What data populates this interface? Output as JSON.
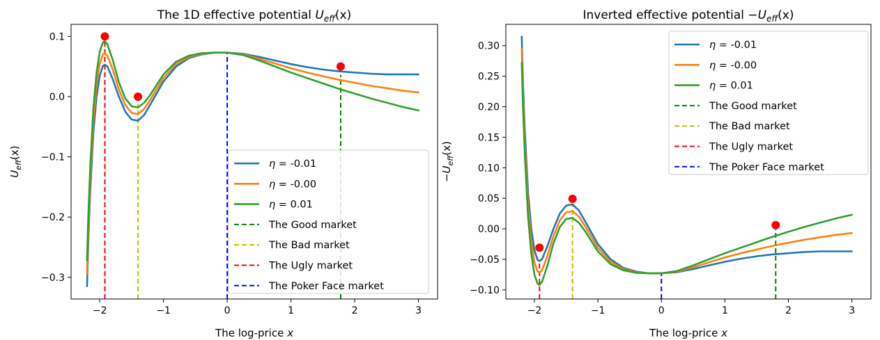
{
  "chart_data": [
    {
      "type": "line",
      "title_prefix": "The 1D effective potential ",
      "title_math": "U",
      "title_sub": "eff",
      "title_suffix": "(x)",
      "xlabel_text": "The log-price ",
      "xlabel_var": "x",
      "ylabel_math": "U",
      "ylabel_sub": "eff",
      "ylabel_suffix": "(x)",
      "ylabel_prefix": "",
      "xlim": [
        -2.45,
        3.3
      ],
      "ylim": [
        -0.336,
        0.12
      ],
      "xticks": [
        -2,
        -1,
        0,
        1,
        2,
        3
      ],
      "xtick_labels": [
        "−2",
        "−1",
        "0",
        "1",
        "2",
        "3"
      ],
      "yticks": [
        -0.3,
        -0.2,
        -0.1,
        0.0,
        0.1
      ],
      "ytick_labels": [
        "−0.3",
        "−0.2",
        "−0.1",
        "0.0",
        "0.1"
      ],
      "legend_position": "lower-right",
      "series": [
        {
          "name_var": "η",
          "name_value": " = -0.01",
          "color": "#1f77b4",
          "x": [
            -2.2,
            -2.18,
            -2.15,
            -2.1,
            -2.05,
            -2.0,
            -1.95,
            -1.92,
            -1.88,
            -1.8,
            -1.7,
            -1.6,
            -1.5,
            -1.4,
            -1.3,
            -1.2,
            -1.0,
            -0.8,
            -0.6,
            -0.4,
            -0.2,
            0.0,
            0.25,
            0.5,
            0.75,
            1.0,
            1.25,
            1.5,
            1.75,
            2.0,
            2.25,
            2.5,
            2.75,
            3.0
          ],
          "y": [
            -0.315,
            -0.24,
            -0.16,
            -0.06,
            0.0,
            0.035,
            0.051,
            0.053,
            0.05,
            0.03,
            0.0,
            -0.025,
            -0.038,
            -0.04,
            -0.03,
            -0.012,
            0.025,
            0.05,
            0.064,
            0.07,
            0.073,
            0.073,
            0.071,
            0.066,
            0.06,
            0.054,
            0.049,
            0.045,
            0.042,
            0.04,
            0.038,
            0.037,
            0.037,
            0.037
          ]
        },
        {
          "name_var": "η",
          "name_value": " = -0.00",
          "color": "#ff7f0e",
          "x": [
            -2.2,
            -2.18,
            -2.15,
            -2.1,
            -2.05,
            -2.0,
            -1.95,
            -1.92,
            -1.88,
            -1.8,
            -1.7,
            -1.6,
            -1.5,
            -1.4,
            -1.3,
            -1.2,
            -1.0,
            -0.8,
            -0.6,
            -0.4,
            -0.2,
            0.0,
            0.25,
            0.5,
            0.75,
            1.0,
            1.25,
            1.5,
            1.75,
            2.0,
            2.25,
            2.5,
            2.75,
            3.0
          ],
          "y": [
            -0.295,
            -0.22,
            -0.14,
            -0.04,
            0.02,
            0.055,
            0.07,
            0.072,
            0.068,
            0.046,
            0.012,
            -0.014,
            -0.027,
            -0.029,
            -0.02,
            -0.004,
            0.031,
            0.054,
            0.066,
            0.071,
            0.073,
            0.073,
            0.07,
            0.063,
            0.055,
            0.047,
            0.04,
            0.034,
            0.028,
            0.023,
            0.018,
            0.014,
            0.01,
            0.007
          ]
        },
        {
          "name_var": "η",
          "name_value": " = 0.01",
          "color": "#2ca02c",
          "x": [
            -2.2,
            -2.18,
            -2.15,
            -2.1,
            -2.05,
            -2.0,
            -1.95,
            -1.92,
            -1.88,
            -1.8,
            -1.7,
            -1.6,
            -1.5,
            -1.4,
            -1.3,
            -1.2,
            -1.0,
            -0.8,
            -0.6,
            -0.4,
            -0.2,
            0.0,
            0.25,
            0.5,
            0.75,
            1.0,
            1.25,
            1.5,
            1.75,
            2.0,
            2.25,
            2.5,
            2.75,
            3.0
          ],
          "y": [
            -0.272,
            -0.2,
            -0.12,
            -0.02,
            0.04,
            0.075,
            0.09,
            0.092,
            0.087,
            0.062,
            0.024,
            -0.003,
            -0.016,
            -0.018,
            -0.01,
            0.004,
            0.037,
            0.058,
            0.068,
            0.072,
            0.073,
            0.073,
            0.069,
            0.06,
            0.05,
            0.04,
            0.031,
            0.022,
            0.013,
            0.005,
            -0.003,
            -0.01,
            -0.017,
            -0.023
          ]
        }
      ],
      "vlines": [
        {
          "label": "The Good market",
          "color": "#008000",
          "x": 1.78,
          "y0": -0.336,
          "y1": 0.036
        },
        {
          "label": "The Bad market",
          "color": "#bfbf00",
          "x": -1.4,
          "y0": -0.336,
          "y1": -0.012
        },
        {
          "label": "The Ugly market",
          "color": "#ff0000",
          "x": -1.92,
          "y0": -0.336,
          "y1": 0.09
        },
        {
          "label": "The Poker Face market",
          "color": "#0000ff",
          "x": 0.0,
          "y0": -0.336,
          "y1": 0.073
        }
      ],
      "markers": {
        "color": "#ff0000",
        "points": [
          [
            -1.92,
            0.1
          ],
          [
            -1.4,
            0.0
          ],
          [
            1.78,
            0.05
          ]
        ]
      }
    },
    {
      "type": "line",
      "title_prefix": "Inverted effective potential −",
      "title_math": "U",
      "title_sub": "eff",
      "title_suffix": "(x)",
      "xlabel_text": "The log-price ",
      "xlabel_var": "x",
      "ylabel_prefix": "−",
      "ylabel_math": "U",
      "ylabel_sub": "eff",
      "ylabel_suffix": "(x)",
      "xlim": [
        -2.45,
        3.3
      ],
      "ylim": [
        -0.115,
        0.335
      ],
      "xticks": [
        -2,
        -1,
        0,
        1,
        2,
        3
      ],
      "xtick_labels": [
        "−2",
        "−1",
        "0",
        "1",
        "2",
        "3"
      ],
      "yticks": [
        -0.1,
        -0.05,
        0.0,
        0.05,
        0.1,
        0.15,
        0.2,
        0.25,
        0.3
      ],
      "ytick_labels": [
        "−0.10",
        "−0.05",
        "0.00",
        "0.05",
        "0.10",
        "0.15",
        "0.20",
        "0.25",
        "0.30"
      ],
      "legend_position": "upper-right",
      "series": [
        {
          "name_var": "η",
          "name_value": " = -0.01",
          "color": "#1f77b4",
          "x": [
            -2.2,
            -2.18,
            -2.15,
            -2.1,
            -2.05,
            -2.0,
            -1.95,
            -1.92,
            -1.88,
            -1.8,
            -1.7,
            -1.6,
            -1.5,
            -1.4,
            -1.3,
            -1.2,
            -1.0,
            -0.8,
            -0.6,
            -0.4,
            -0.2,
            0.0,
            0.25,
            0.5,
            0.75,
            1.0,
            1.25,
            1.5,
            1.75,
            2.0,
            2.25,
            2.5,
            2.75,
            3.0
          ],
          "y": [
            0.315,
            0.24,
            0.16,
            0.06,
            0.0,
            -0.035,
            -0.051,
            -0.053,
            -0.05,
            -0.03,
            0.0,
            0.025,
            0.038,
            0.04,
            0.03,
            0.012,
            -0.025,
            -0.05,
            -0.064,
            -0.07,
            -0.073,
            -0.073,
            -0.071,
            -0.066,
            -0.06,
            -0.054,
            -0.049,
            -0.045,
            -0.042,
            -0.04,
            -0.038,
            -0.037,
            -0.037,
            -0.037
          ]
        },
        {
          "name_var": "η",
          "name_value": " = -0.00",
          "color": "#ff7f0e",
          "x": [
            -2.2,
            -2.18,
            -2.15,
            -2.1,
            -2.05,
            -2.0,
            -1.95,
            -1.92,
            -1.88,
            -1.8,
            -1.7,
            -1.6,
            -1.5,
            -1.4,
            -1.3,
            -1.2,
            -1.0,
            -0.8,
            -0.6,
            -0.4,
            -0.2,
            0.0,
            0.25,
            0.5,
            0.75,
            1.0,
            1.25,
            1.5,
            1.75,
            2.0,
            2.25,
            2.5,
            2.75,
            3.0
          ],
          "y": [
            0.295,
            0.22,
            0.14,
            0.04,
            -0.02,
            -0.055,
            -0.07,
            -0.072,
            -0.068,
            -0.046,
            -0.012,
            0.014,
            0.027,
            0.029,
            0.02,
            0.004,
            -0.031,
            -0.054,
            -0.066,
            -0.071,
            -0.073,
            -0.073,
            -0.07,
            -0.063,
            -0.055,
            -0.047,
            -0.04,
            -0.034,
            -0.028,
            -0.023,
            -0.018,
            -0.014,
            -0.01,
            -0.007
          ]
        },
        {
          "name_var": "η",
          "name_value": " = 0.01",
          "color": "#2ca02c",
          "x": [
            -2.2,
            -2.18,
            -2.15,
            -2.1,
            -2.05,
            -2.0,
            -1.95,
            -1.92,
            -1.88,
            -1.8,
            -1.7,
            -1.6,
            -1.5,
            -1.4,
            -1.3,
            -1.2,
            -1.0,
            -0.8,
            -0.6,
            -0.4,
            -0.2,
            0.0,
            0.25,
            0.5,
            0.75,
            1.0,
            1.25,
            1.5,
            1.75,
            2.0,
            2.25,
            2.5,
            2.75,
            3.0
          ],
          "y": [
            0.272,
            0.2,
            0.12,
            0.02,
            -0.04,
            -0.075,
            -0.09,
            -0.092,
            -0.087,
            -0.062,
            -0.024,
            0.003,
            0.016,
            0.018,
            0.01,
            -0.004,
            -0.037,
            -0.058,
            -0.068,
            -0.072,
            -0.073,
            -0.073,
            -0.069,
            -0.06,
            -0.05,
            -0.04,
            -0.031,
            -0.022,
            -0.013,
            -0.005,
            0.003,
            0.01,
            0.017,
            0.023
          ]
        }
      ],
      "vlines": [
        {
          "label": "The Good market",
          "color": "#008000",
          "x": 1.8,
          "y0": -0.115,
          "y1": 0.0
        },
        {
          "label": "The Bad market",
          "color": "#bfbf00",
          "x": -1.4,
          "y0": -0.115,
          "y1": 0.04
        },
        {
          "label": "The Ugly market",
          "color": "#ff0000",
          "x": -1.92,
          "y0": -0.115,
          "y1": -0.053
        },
        {
          "label": "The Poker Face market",
          "color": "#0000ff",
          "x": 0.0,
          "y0": -0.115,
          "y1": -0.073
        }
      ],
      "markers": {
        "color": "#ff0000",
        "points": [
          [
            -1.92,
            -0.031
          ],
          [
            -1.4,
            0.049
          ],
          [
            1.8,
            0.006
          ]
        ]
      }
    }
  ]
}
